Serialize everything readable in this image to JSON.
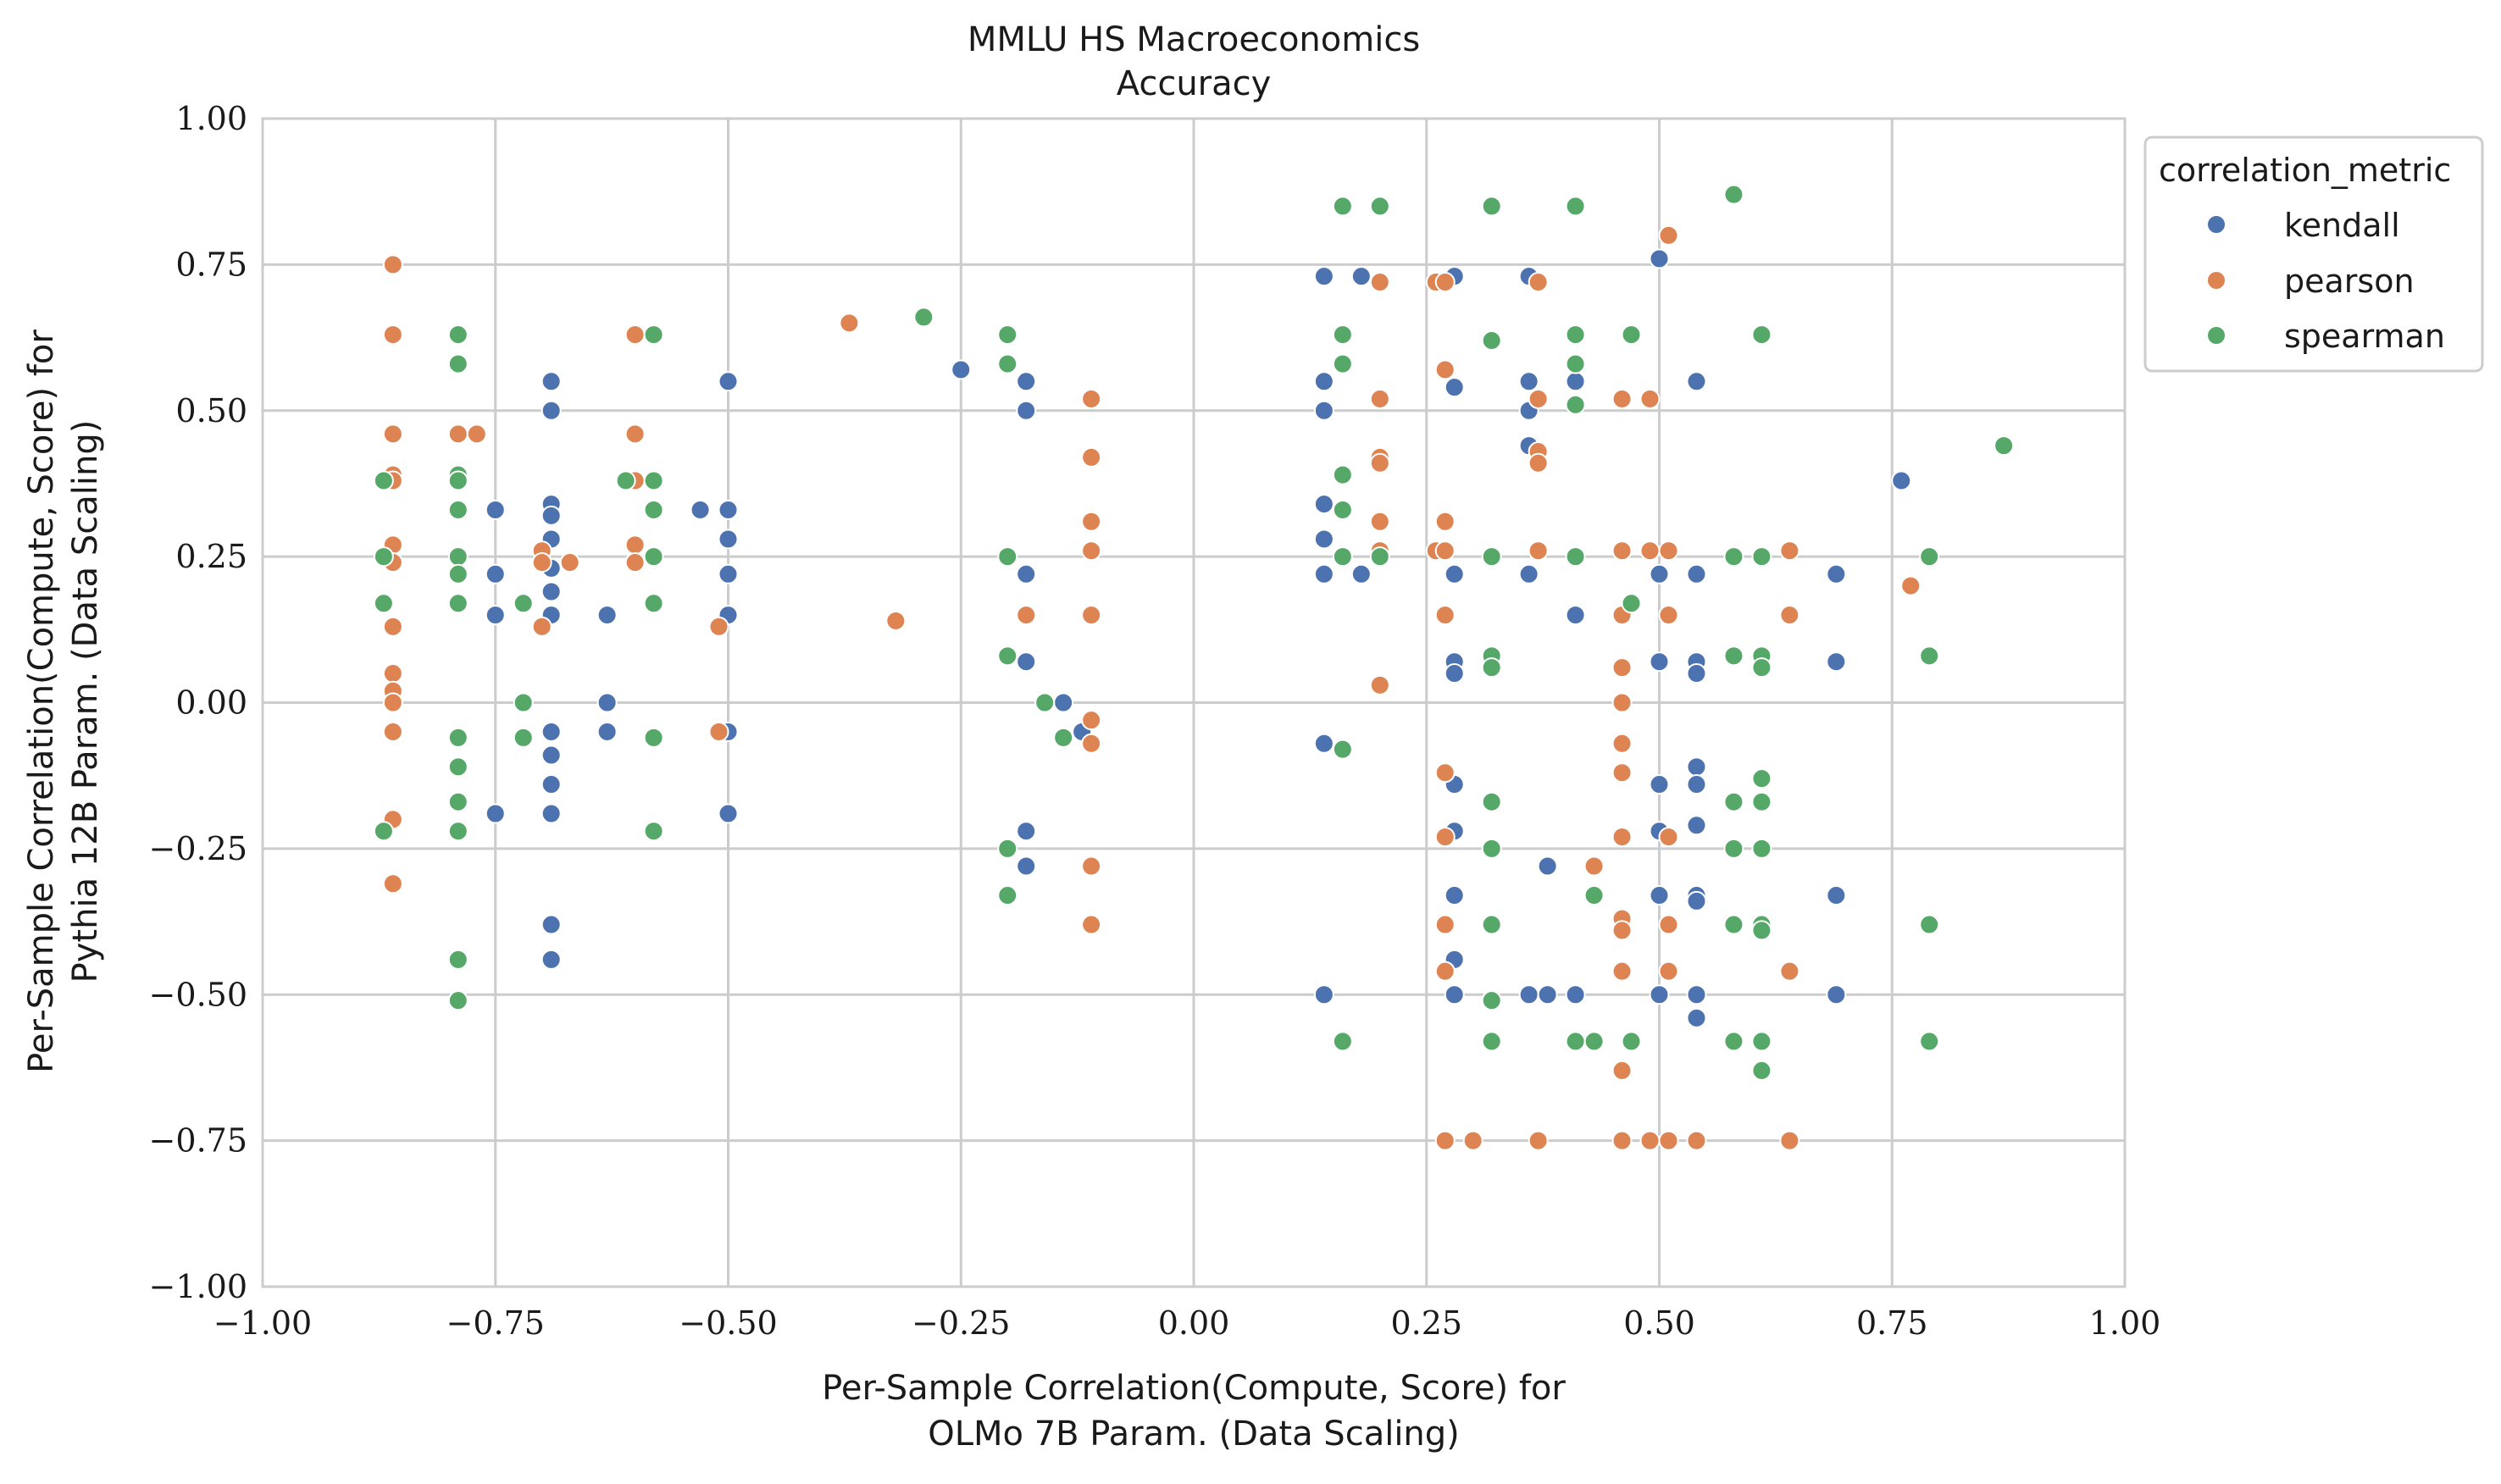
{
  "chart_data": {
    "type": "scatter",
    "title": "MMLU HS Macroeconomics",
    "subtitle": "Accuracy",
    "xlabel": [
      "Per-Sample Correlation(Compute, Score) for",
      "OLMo 7B Param. (Data Scaling)"
    ],
    "ylabel": [
      "Per-Sample Correlation(Compute, Score) for",
      "Pythia 12B Param. (Data Scaling)"
    ],
    "xlim": [
      -1.0,
      1.0
    ],
    "ylim": [
      -1.0,
      1.0
    ],
    "xticks": [
      -1.0,
      -0.75,
      -0.5,
      -0.25,
      0.0,
      0.25,
      0.5,
      0.75,
      1.0
    ],
    "yticks": [
      -1.0,
      -0.75,
      -0.5,
      -0.25,
      0.0,
      0.25,
      0.5,
      0.75,
      1.0
    ],
    "xtick_labels": [
      "−1.00",
      "−0.75",
      "−0.50",
      "−0.25",
      "0.00",
      "0.25",
      "0.50",
      "0.75",
      "1.00"
    ],
    "ytick_labels": [
      "−1.00",
      "−0.75",
      "−0.50",
      "−0.25",
      "0.00",
      "0.25",
      "0.50",
      "0.75",
      "1.00"
    ],
    "grid": true,
    "legend": {
      "title": "correlation_metric",
      "placement": "outside-upper-right"
    },
    "series": [
      {
        "name": "kendall",
        "color": "#4c72b0",
        "points": [
          [
            -0.75,
            0.33
          ],
          [
            -0.75,
            0.22
          ],
          [
            -0.75,
            0.15
          ],
          [
            -0.75,
            -0.19
          ],
          [
            -0.69,
            0.55
          ],
          [
            -0.69,
            0.5
          ],
          [
            -0.69,
            0.34
          ],
          [
            -0.69,
            0.32
          ],
          [
            -0.69,
            0.28
          ],
          [
            -0.69,
            0.23
          ],
          [
            -0.69,
            0.19
          ],
          [
            -0.69,
            0.15
          ],
          [
            -0.69,
            -0.05
          ],
          [
            -0.69,
            -0.09
          ],
          [
            -0.69,
            -0.14
          ],
          [
            -0.69,
            -0.19
          ],
          [
            -0.69,
            -0.38
          ],
          [
            -0.69,
            -0.44
          ],
          [
            -0.63,
            0.15
          ],
          [
            -0.63,
            0.0
          ],
          [
            -0.63,
            -0.05
          ],
          [
            -0.53,
            0.33
          ],
          [
            -0.5,
            0.55
          ],
          [
            -0.5,
            0.33
          ],
          [
            -0.5,
            0.28
          ],
          [
            -0.5,
            0.22
          ],
          [
            -0.5,
            0.15
          ],
          [
            -0.5,
            -0.05
          ],
          [
            -0.5,
            -0.19
          ],
          [
            -0.25,
            0.57
          ],
          [
            -0.18,
            0.55
          ],
          [
            -0.18,
            0.5
          ],
          [
            -0.18,
            0.22
          ],
          [
            -0.18,
            0.07
          ],
          [
            -0.18,
            -0.22
          ],
          [
            -0.18,
            -0.28
          ],
          [
            -0.14,
            0.0
          ],
          [
            -0.12,
            -0.05
          ],
          [
            0.14,
            0.73
          ],
          [
            0.14,
            0.55
          ],
          [
            0.14,
            0.5
          ],
          [
            0.14,
            0.34
          ],
          [
            0.14,
            0.28
          ],
          [
            0.14,
            0.22
          ],
          [
            0.14,
            -0.07
          ],
          [
            0.14,
            -0.5
          ],
          [
            0.18,
            0.73
          ],
          [
            0.18,
            0.22
          ],
          [
            0.28,
            0.73
          ],
          [
            0.28,
            0.54
          ],
          [
            0.28,
            0.22
          ],
          [
            0.28,
            0.07
          ],
          [
            0.28,
            0.05
          ],
          [
            0.28,
            -0.14
          ],
          [
            0.28,
            -0.22
          ],
          [
            0.28,
            -0.33
          ],
          [
            0.28,
            -0.44
          ],
          [
            0.28,
            -0.5
          ],
          [
            0.36,
            0.73
          ],
          [
            0.36,
            0.55
          ],
          [
            0.36,
            0.5
          ],
          [
            0.36,
            0.44
          ],
          [
            0.36,
            0.22
          ],
          [
            0.36,
            -0.5
          ],
          [
            0.38,
            -0.28
          ],
          [
            0.38,
            -0.5
          ],
          [
            0.41,
            0.55
          ],
          [
            0.41,
            0.15
          ],
          [
            0.41,
            -0.5
          ],
          [
            0.5,
            0.76
          ],
          [
            0.5,
            0.22
          ],
          [
            0.5,
            0.07
          ],
          [
            0.5,
            -0.14
          ],
          [
            0.5,
            -0.22
          ],
          [
            0.5,
            -0.33
          ],
          [
            0.5,
            -0.5
          ],
          [
            0.54,
            0.55
          ],
          [
            0.54,
            0.22
          ],
          [
            0.54,
            0.07
          ],
          [
            0.54,
            0.05
          ],
          [
            0.54,
            -0.11
          ],
          [
            0.54,
            -0.14
          ],
          [
            0.54,
            -0.21
          ],
          [
            0.54,
            -0.33
          ],
          [
            0.54,
            -0.34
          ],
          [
            0.54,
            -0.5
          ],
          [
            0.54,
            -0.54
          ],
          [
            0.69,
            0.22
          ],
          [
            0.69,
            0.07
          ],
          [
            0.69,
            -0.33
          ],
          [
            0.69,
            -0.5
          ],
          [
            0.76,
            0.38
          ]
        ]
      },
      {
        "name": "pearson",
        "color": "#dd8452",
        "points": [
          [
            -0.86,
            0.75
          ],
          [
            -0.86,
            0.63
          ],
          [
            -0.86,
            0.46
          ],
          [
            -0.86,
            0.39
          ],
          [
            -0.86,
            0.38
          ],
          [
            -0.86,
            0.27
          ],
          [
            -0.86,
            0.24
          ],
          [
            -0.86,
            0.13
          ],
          [
            -0.86,
            0.05
          ],
          [
            -0.86,
            0.02
          ],
          [
            -0.86,
            0.0
          ],
          [
            -0.86,
            -0.05
          ],
          [
            -0.86,
            -0.2
          ],
          [
            -0.86,
            -0.31
          ],
          [
            -0.79,
            0.46
          ],
          [
            -0.77,
            0.46
          ],
          [
            -0.7,
            0.26
          ],
          [
            -0.7,
            0.24
          ],
          [
            -0.7,
            0.13
          ],
          [
            -0.67,
            0.24
          ],
          [
            -0.6,
            0.63
          ],
          [
            -0.6,
            0.46
          ],
          [
            -0.6,
            0.38
          ],
          [
            -0.6,
            0.27
          ],
          [
            -0.6,
            0.24
          ],
          [
            -0.51,
            0.13
          ],
          [
            -0.51,
            -0.05
          ],
          [
            -0.37,
            0.65
          ],
          [
            -0.32,
            0.14
          ],
          [
            -0.18,
            0.15
          ],
          [
            -0.11,
            0.52
          ],
          [
            -0.11,
            0.42
          ],
          [
            -0.11,
            0.31
          ],
          [
            -0.11,
            0.26
          ],
          [
            -0.11,
            0.15
          ],
          [
            -0.11,
            -0.03
          ],
          [
            -0.11,
            -0.07
          ],
          [
            -0.11,
            -0.28
          ],
          [
            -0.11,
            -0.38
          ],
          [
            0.2,
            0.72
          ],
          [
            0.2,
            0.52
          ],
          [
            0.2,
            0.42
          ],
          [
            0.2,
            0.41
          ],
          [
            0.2,
            0.31
          ],
          [
            0.2,
            0.26
          ],
          [
            0.2,
            0.03
          ],
          [
            0.26,
            0.72
          ],
          [
            0.26,
            0.26
          ],
          [
            0.27,
            0.72
          ],
          [
            0.27,
            0.57
          ],
          [
            0.27,
            0.31
          ],
          [
            0.27,
            0.26
          ],
          [
            0.27,
            0.15
          ],
          [
            0.27,
            -0.12
          ],
          [
            0.27,
            -0.23
          ],
          [
            0.27,
            -0.38
          ],
          [
            0.27,
            -0.46
          ],
          [
            0.27,
            -0.75
          ],
          [
            0.3,
            -0.75
          ],
          [
            0.37,
            0.72
          ],
          [
            0.37,
            0.52
          ],
          [
            0.37,
            0.43
          ],
          [
            0.37,
            0.41
          ],
          [
            0.37,
            0.26
          ],
          [
            0.37,
            -0.75
          ],
          [
            0.43,
            -0.28
          ],
          [
            0.46,
            0.52
          ],
          [
            0.46,
            0.26
          ],
          [
            0.46,
            0.15
          ],
          [
            0.46,
            0.06
          ],
          [
            0.46,
            0.0
          ],
          [
            0.46,
            -0.07
          ],
          [
            0.46,
            -0.12
          ],
          [
            0.46,
            -0.23
          ],
          [
            0.46,
            -0.37
          ],
          [
            0.46,
            -0.39
          ],
          [
            0.46,
            -0.46
          ],
          [
            0.46,
            -0.63
          ],
          [
            0.46,
            -0.75
          ],
          [
            0.49,
            0.52
          ],
          [
            0.49,
            0.26
          ],
          [
            0.49,
            -0.75
          ],
          [
            0.51,
            0.8
          ],
          [
            0.51,
            0.26
          ],
          [
            0.51,
            0.15
          ],
          [
            0.51,
            -0.23
          ],
          [
            0.51,
            -0.38
          ],
          [
            0.51,
            -0.46
          ],
          [
            0.51,
            -0.75
          ],
          [
            0.54,
            -0.75
          ],
          [
            0.64,
            0.26
          ],
          [
            0.64,
            0.15
          ],
          [
            0.64,
            -0.46
          ],
          [
            0.64,
            -0.75
          ],
          [
            0.77,
            0.2
          ]
        ]
      },
      {
        "name": "spearman",
        "color": "#55a868",
        "points": [
          [
            -0.87,
            0.38
          ],
          [
            -0.87,
            0.25
          ],
          [
            -0.87,
            0.17
          ],
          [
            -0.87,
            -0.22
          ],
          [
            -0.79,
            0.63
          ],
          [
            -0.79,
            0.58
          ],
          [
            -0.79,
            0.39
          ],
          [
            -0.79,
            0.38
          ],
          [
            -0.79,
            0.33
          ],
          [
            -0.79,
            0.25
          ],
          [
            -0.79,
            0.22
          ],
          [
            -0.79,
            0.17
          ],
          [
            -0.79,
            -0.06
          ],
          [
            -0.79,
            -0.11
          ],
          [
            -0.79,
            -0.17
          ],
          [
            -0.79,
            -0.22
          ],
          [
            -0.79,
            -0.44
          ],
          [
            -0.79,
            -0.51
          ],
          [
            -0.72,
            0.17
          ],
          [
            -0.72,
            0.0
          ],
          [
            -0.72,
            -0.06
          ],
          [
            -0.61,
            0.38
          ],
          [
            -0.58,
            0.63
          ],
          [
            -0.58,
            0.38
          ],
          [
            -0.58,
            0.33
          ],
          [
            -0.58,
            0.25
          ],
          [
            -0.58,
            0.17
          ],
          [
            -0.58,
            -0.06
          ],
          [
            -0.58,
            -0.22
          ],
          [
            -0.29,
            0.66
          ],
          [
            -0.2,
            0.63
          ],
          [
            -0.2,
            0.58
          ],
          [
            -0.2,
            0.25
          ],
          [
            -0.2,
            0.08
          ],
          [
            -0.2,
            -0.25
          ],
          [
            -0.2,
            -0.33
          ],
          [
            -0.16,
            0.0
          ],
          [
            -0.14,
            -0.06
          ],
          [
            0.16,
            0.85
          ],
          [
            0.16,
            0.63
          ],
          [
            0.16,
            0.58
          ],
          [
            0.16,
            0.39
          ],
          [
            0.16,
            0.33
          ],
          [
            0.16,
            0.25
          ],
          [
            0.16,
            -0.08
          ],
          [
            0.16,
            -0.58
          ],
          [
            0.2,
            0.85
          ],
          [
            0.2,
            0.25
          ],
          [
            0.32,
            0.85
          ],
          [
            0.32,
            0.62
          ],
          [
            0.32,
            0.25
          ],
          [
            0.32,
            0.08
          ],
          [
            0.32,
            0.06
          ],
          [
            0.32,
            -0.17
          ],
          [
            0.32,
            -0.25
          ],
          [
            0.32,
            -0.38
          ],
          [
            0.32,
            -0.51
          ],
          [
            0.32,
            -0.58
          ],
          [
            0.41,
            0.85
          ],
          [
            0.41,
            0.63
          ],
          [
            0.41,
            0.58
          ],
          [
            0.41,
            0.51
          ],
          [
            0.41,
            0.25
          ],
          [
            0.41,
            -0.58
          ],
          [
            0.43,
            -0.33
          ],
          [
            0.43,
            -0.58
          ],
          [
            0.47,
            0.63
          ],
          [
            0.47,
            0.17
          ],
          [
            0.47,
            -0.58
          ],
          [
            0.58,
            0.87
          ],
          [
            0.58,
            0.25
          ],
          [
            0.58,
            0.08
          ],
          [
            0.58,
            -0.17
          ],
          [
            0.58,
            -0.25
          ],
          [
            0.58,
            -0.38
          ],
          [
            0.58,
            -0.58
          ],
          [
            0.61,
            0.63
          ],
          [
            0.61,
            0.25
          ],
          [
            0.61,
            0.08
          ],
          [
            0.61,
            0.06
          ],
          [
            0.61,
            -0.13
          ],
          [
            0.61,
            -0.17
          ],
          [
            0.61,
            -0.25
          ],
          [
            0.61,
            -0.38
          ],
          [
            0.61,
            -0.39
          ],
          [
            0.61,
            -0.58
          ],
          [
            0.61,
            -0.63
          ],
          [
            0.79,
            0.25
          ],
          [
            0.79,
            0.08
          ],
          [
            0.79,
            -0.38
          ],
          [
            0.79,
            -0.58
          ],
          [
            0.87,
            0.44
          ]
        ]
      }
    ]
  }
}
